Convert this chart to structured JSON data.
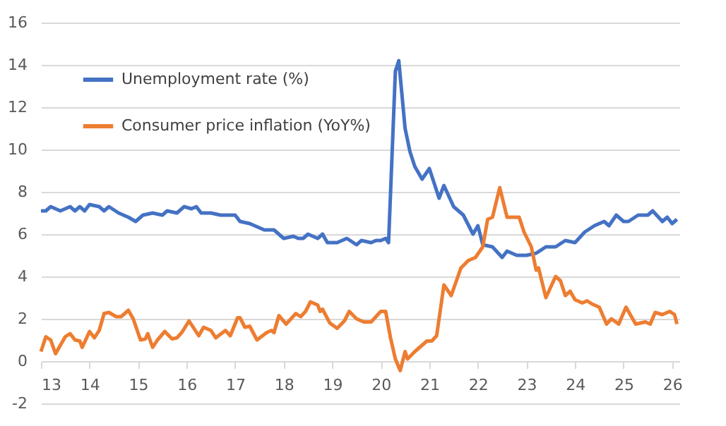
{
  "chart_data": {
    "type": "line",
    "xlim": [
      13,
      26.15
    ],
    "xticks": [
      13,
      14,
      15,
      16,
      17,
      18,
      19,
      20,
      21,
      22,
      23,
      24,
      25,
      26
    ],
    "ylim": [
      -2,
      16
    ],
    "yticks": [
      -2,
      0,
      2,
      4,
      6,
      8,
      10,
      12,
      14,
      16
    ],
    "grid": "y",
    "legend": "top left",
    "line_style": "solid",
    "marker": "none",
    "series": [
      {
        "name": "Unemployment rate (%)",
        "color": "#4472c4",
        "x": [
          13.0,
          13.1,
          13.2,
          13.4,
          13.6,
          13.7,
          13.8,
          13.9,
          14.0,
          14.2,
          14.3,
          14.4,
          14.6,
          14.8,
          14.95,
          15.1,
          15.3,
          15.5,
          15.6,
          15.8,
          15.95,
          16.1,
          16.2,
          16.3,
          16.5,
          16.7,
          16.9,
          17.0,
          17.1,
          17.3,
          17.5,
          17.6,
          17.8,
          17.9,
          18.0,
          18.2,
          18.3,
          18.4,
          18.5,
          18.7,
          18.8,
          18.9,
          19.1,
          19.3,
          19.5,
          19.6,
          19.8,
          19.9,
          20.0,
          20.1,
          20.16,
          20.3,
          20.37,
          20.5,
          20.6,
          20.7,
          20.85,
          21.0,
          21.2,
          21.3,
          21.5,
          21.7,
          21.9,
          22.0,
          22.1,
          22.3,
          22.5,
          22.6,
          22.8,
          23.0,
          23.2,
          23.4,
          23.6,
          23.8,
          24.0,
          24.2,
          24.4,
          24.6,
          24.7,
          24.85,
          25.0,
          25.1,
          25.3,
          25.5,
          25.6,
          25.8,
          25.9,
          26.0,
          26.1
        ],
        "values": [
          7.1,
          7.1,
          7.3,
          7.1,
          7.3,
          7.1,
          7.3,
          7.1,
          7.4,
          7.3,
          7.1,
          7.3,
          7.0,
          6.8,
          6.6,
          6.9,
          7.0,
          6.9,
          7.1,
          7.0,
          7.3,
          7.2,
          7.3,
          7.0,
          7.0,
          6.9,
          6.9,
          6.9,
          6.6,
          6.5,
          6.3,
          6.2,
          6.2,
          6.0,
          5.8,
          5.9,
          5.8,
          5.8,
          6.0,
          5.8,
          6.0,
          5.6,
          5.6,
          5.8,
          5.5,
          5.7,
          5.6,
          5.7,
          5.7,
          5.8,
          5.6,
          13.7,
          14.2,
          11.0,
          9.9,
          9.2,
          8.6,
          9.1,
          7.7,
          8.3,
          7.3,
          6.9,
          6.0,
          6.4,
          5.5,
          5.4,
          4.9,
          5.2,
          5.0,
          5.0,
          5.1,
          5.4,
          5.4,
          5.7,
          5.6,
          6.1,
          6.4,
          6.6,
          6.4,
          6.9,
          6.6,
          6.6,
          6.9,
          6.9,
          7.1,
          6.6,
          6.8,
          6.5,
          6.7
        ]
      },
      {
        "name": "Consumer price inflation (YoY%)",
        "color": "#ed7d31",
        "x": [
          13.0,
          13.1,
          13.2,
          13.3,
          13.5,
          13.6,
          13.7,
          13.8,
          13.85,
          14.0,
          14.1,
          14.2,
          14.3,
          14.4,
          14.55,
          14.65,
          14.8,
          14.9,
          15.05,
          15.15,
          15.2,
          15.3,
          15.4,
          15.55,
          15.7,
          15.8,
          15.9,
          16.05,
          16.25,
          16.35,
          16.5,
          16.6,
          16.8,
          16.9,
          17.05,
          17.1,
          17.2,
          17.3,
          17.45,
          17.65,
          17.75,
          17.8,
          17.9,
          18.05,
          18.25,
          18.35,
          18.45,
          18.55,
          18.7,
          18.75,
          18.8,
          18.95,
          19.1,
          19.25,
          19.35,
          19.5,
          19.65,
          19.8,
          20.0,
          20.1,
          20.2,
          20.3,
          20.4,
          20.5,
          20.55,
          20.7,
          20.8,
          20.95,
          21.05,
          21.15,
          21.3,
          21.45,
          21.65,
          21.8,
          21.95,
          22.1,
          22.2,
          22.3,
          22.45,
          22.6,
          22.85,
          22.95,
          23.1,
          23.2,
          23.25,
          23.4,
          23.6,
          23.7,
          23.8,
          23.9,
          24.0,
          24.15,
          24.25,
          24.35,
          24.5,
          24.65,
          24.75,
          24.9,
          25.05,
          25.25,
          25.45,
          25.55,
          25.65,
          25.8,
          25.95,
          26.05,
          26.1
        ],
        "values": [
          0.45,
          1.15,
          1.0,
          0.35,
          1.15,
          1.3,
          1.0,
          0.95,
          0.65,
          1.4,
          1.1,
          1.45,
          2.25,
          2.3,
          2.1,
          2.1,
          2.4,
          2.0,
          1.0,
          1.05,
          1.3,
          0.65,
          1.0,
          1.4,
          1.05,
          1.1,
          1.35,
          1.9,
          1.2,
          1.6,
          1.45,
          1.1,
          1.45,
          1.2,
          2.05,
          2.05,
          1.6,
          1.65,
          1.0,
          1.35,
          1.45,
          1.35,
          2.15,
          1.75,
          2.25,
          2.1,
          2.35,
          2.8,
          2.65,
          2.35,
          2.45,
          1.8,
          1.55,
          1.9,
          2.35,
          2.0,
          1.85,
          1.85,
          2.35,
          2.35,
          1.1,
          0.1,
          -0.45,
          0.45,
          0.1,
          0.45,
          0.65,
          0.95,
          0.95,
          1.2,
          3.6,
          3.1,
          4.4,
          4.75,
          4.9,
          5.4,
          6.7,
          6.8,
          8.2,
          6.8,
          6.8,
          6.1,
          5.4,
          4.3,
          4.4,
          3.0,
          4.0,
          3.8,
          3.1,
          3.3,
          2.9,
          2.75,
          2.85,
          2.7,
          2.55,
          1.75,
          2.0,
          1.75,
          2.55,
          1.75,
          1.85,
          1.75,
          2.3,
          2.2,
          2.35,
          2.2,
          1.75
        ]
      }
    ]
  }
}
